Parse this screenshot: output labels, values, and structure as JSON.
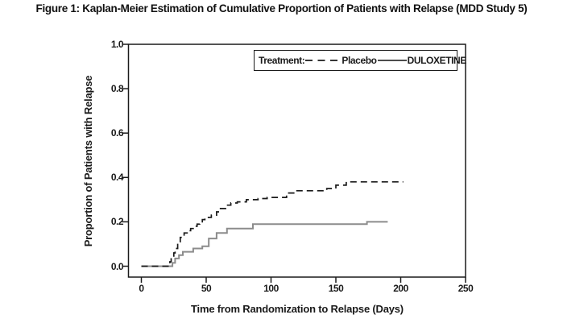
{
  "chart_data": {
    "type": "line",
    "subtype": "kaplan-meier-step",
    "title": "Figure 1: Kaplan-Meier Estimation of Cumulative Proportion of Patients with Relapse (MDD Study 5)",
    "xlabel": "Time from Randomization to Relapse (Days)",
    "ylabel": "Proportion of Patients with Relapse",
    "xlim": [
      0,
      250
    ],
    "ylim": [
      0.0,
      1.0
    ],
    "x_ticks": [
      0,
      50,
      100,
      150,
      200,
      250
    ],
    "y_ticks": [
      0.0,
      0.2,
      0.4,
      0.6,
      0.8,
      1.0
    ],
    "grid": "off",
    "legend": {
      "title": "Treatment:",
      "position": "top-right-inside"
    },
    "axis_color": "#1a1a1a",
    "series": [
      {
        "name": "Placebo",
        "line_style": "dashed",
        "color": "#1a1a1a",
        "points": [
          [
            0,
            0
          ],
          [
            21,
            0
          ],
          [
            22,
            0.02
          ],
          [
            23,
            0.04
          ],
          [
            25,
            0.06
          ],
          [
            26,
            0.08
          ],
          [
            28,
            0.11
          ],
          [
            30,
            0.13
          ],
          [
            33,
            0.15
          ],
          [
            36,
            0.16
          ],
          [
            38,
            0.17
          ],
          [
            41,
            0.18
          ],
          [
            43,
            0.19
          ],
          [
            45,
            0.2
          ],
          [
            47,
            0.21
          ],
          [
            49,
            0.22
          ],
          [
            54,
            0.23
          ],
          [
            58,
            0.245
          ],
          [
            61,
            0.26
          ],
          [
            65,
            0.275
          ],
          [
            69,
            0.285
          ],
          [
            74,
            0.29
          ],
          [
            81,
            0.3
          ],
          [
            90,
            0.305
          ],
          [
            97,
            0.31
          ],
          [
            112,
            0.33
          ],
          [
            119,
            0.34
          ],
          [
            143,
            0.35
          ],
          [
            150,
            0.365
          ],
          [
            158,
            0.38
          ],
          [
            202,
            0.38
          ]
        ]
      },
      {
        "name": "DULOXETINE",
        "line_style": "solid",
        "color": "#8c8c8c",
        "points": [
          [
            0,
            0
          ],
          [
            23,
            0
          ],
          [
            24,
            0.015
          ],
          [
            26,
            0.035
          ],
          [
            29,
            0.05
          ],
          [
            32,
            0.065
          ],
          [
            40,
            0.08
          ],
          [
            47,
            0.09
          ],
          [
            52,
            0.125
          ],
          [
            58,
            0.15
          ],
          [
            66,
            0.17
          ],
          [
            86,
            0.19
          ],
          [
            174,
            0.2
          ],
          [
            190,
            0.2
          ]
        ]
      }
    ]
  }
}
